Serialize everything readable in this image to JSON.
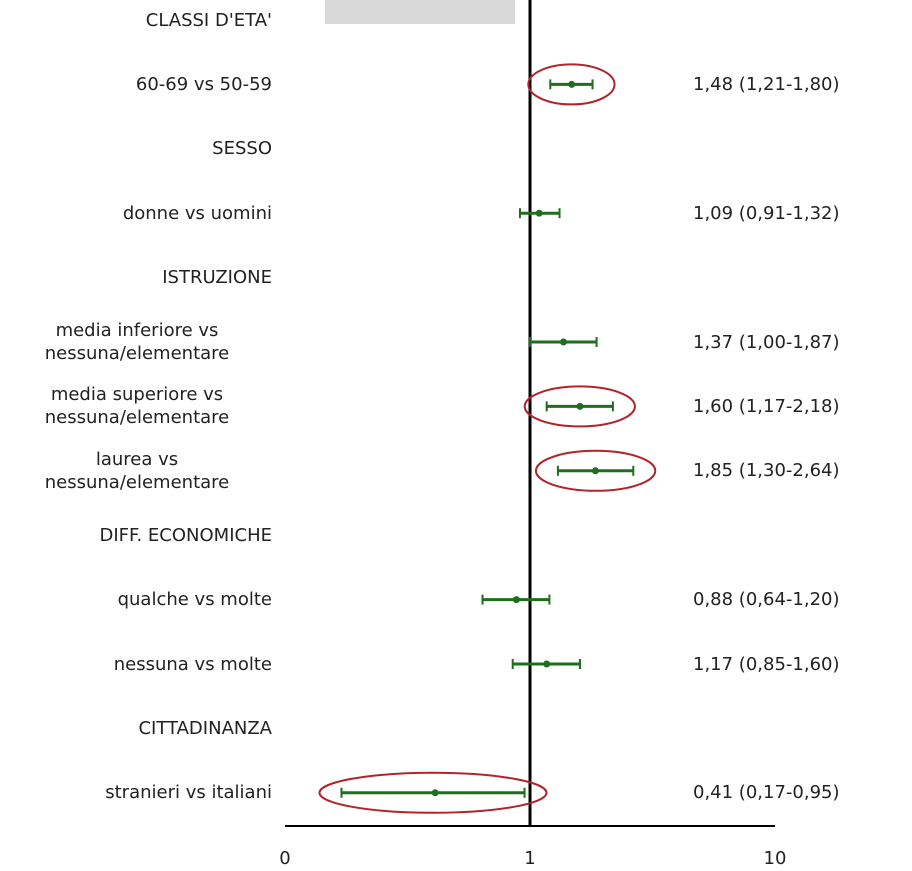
{
  "chart_data": {
    "type": "forest",
    "categories": [
      "CLASSI D'ETA'",
      "60-69 vs 50-59",
      "SESSO",
      "donne vs uomini",
      "ISTRUZIONE",
      "media inferiore vs\nnessuna/elementare",
      "media superiore vs\nnessuna/elementare",
      "laurea vs\nnessuna/elementare",
      "DIFF. ECONOMICHE",
      "qualche vs molte",
      "nessuna vs molte",
      "CITTADINANZA",
      "stranieri vs italiani"
    ],
    "values": [
      null,
      1.48,
      null,
      1.09,
      null,
      1.37,
      1.6,
      1.85,
      null,
      0.88,
      1.17,
      null,
      0.41
    ],
    "lower": [
      null,
      1.21,
      null,
      0.91,
      null,
      1.0,
      1.17,
      1.3,
      null,
      0.64,
      0.85,
      null,
      0.17
    ],
    "upper": [
      null,
      1.8,
      null,
      1.32,
      null,
      1.87,
      2.18,
      2.64,
      null,
      1.2,
      1.6,
      null,
      0.95
    ],
    "value_labels": [
      null,
      "1,48 (1,21-1,80)",
      null,
      "1,09 (0,91-1,32)",
      null,
      "1,37 (1,00-1,87)",
      "1,60 (1,17-2,18)",
      "1,85 (1,30-2,64)",
      null,
      "0,88 (0,64-1,20)",
      "1,17 (0,85-1,60)",
      null,
      "0,41 (0,17-0,95)"
    ],
    "highlighted": [
      false,
      true,
      false,
      false,
      false,
      false,
      true,
      true,
      false,
      false,
      false,
      false,
      true
    ],
    "color": "#1e6e1e",
    "highlight_color": "#b0242a",
    "xscale": "log",
    "xlim": [
      0.1,
      10
    ],
    "xticks": [
      {
        "value": 0.1,
        "label": "0"
      },
      1,
      10
    ]
  }
}
